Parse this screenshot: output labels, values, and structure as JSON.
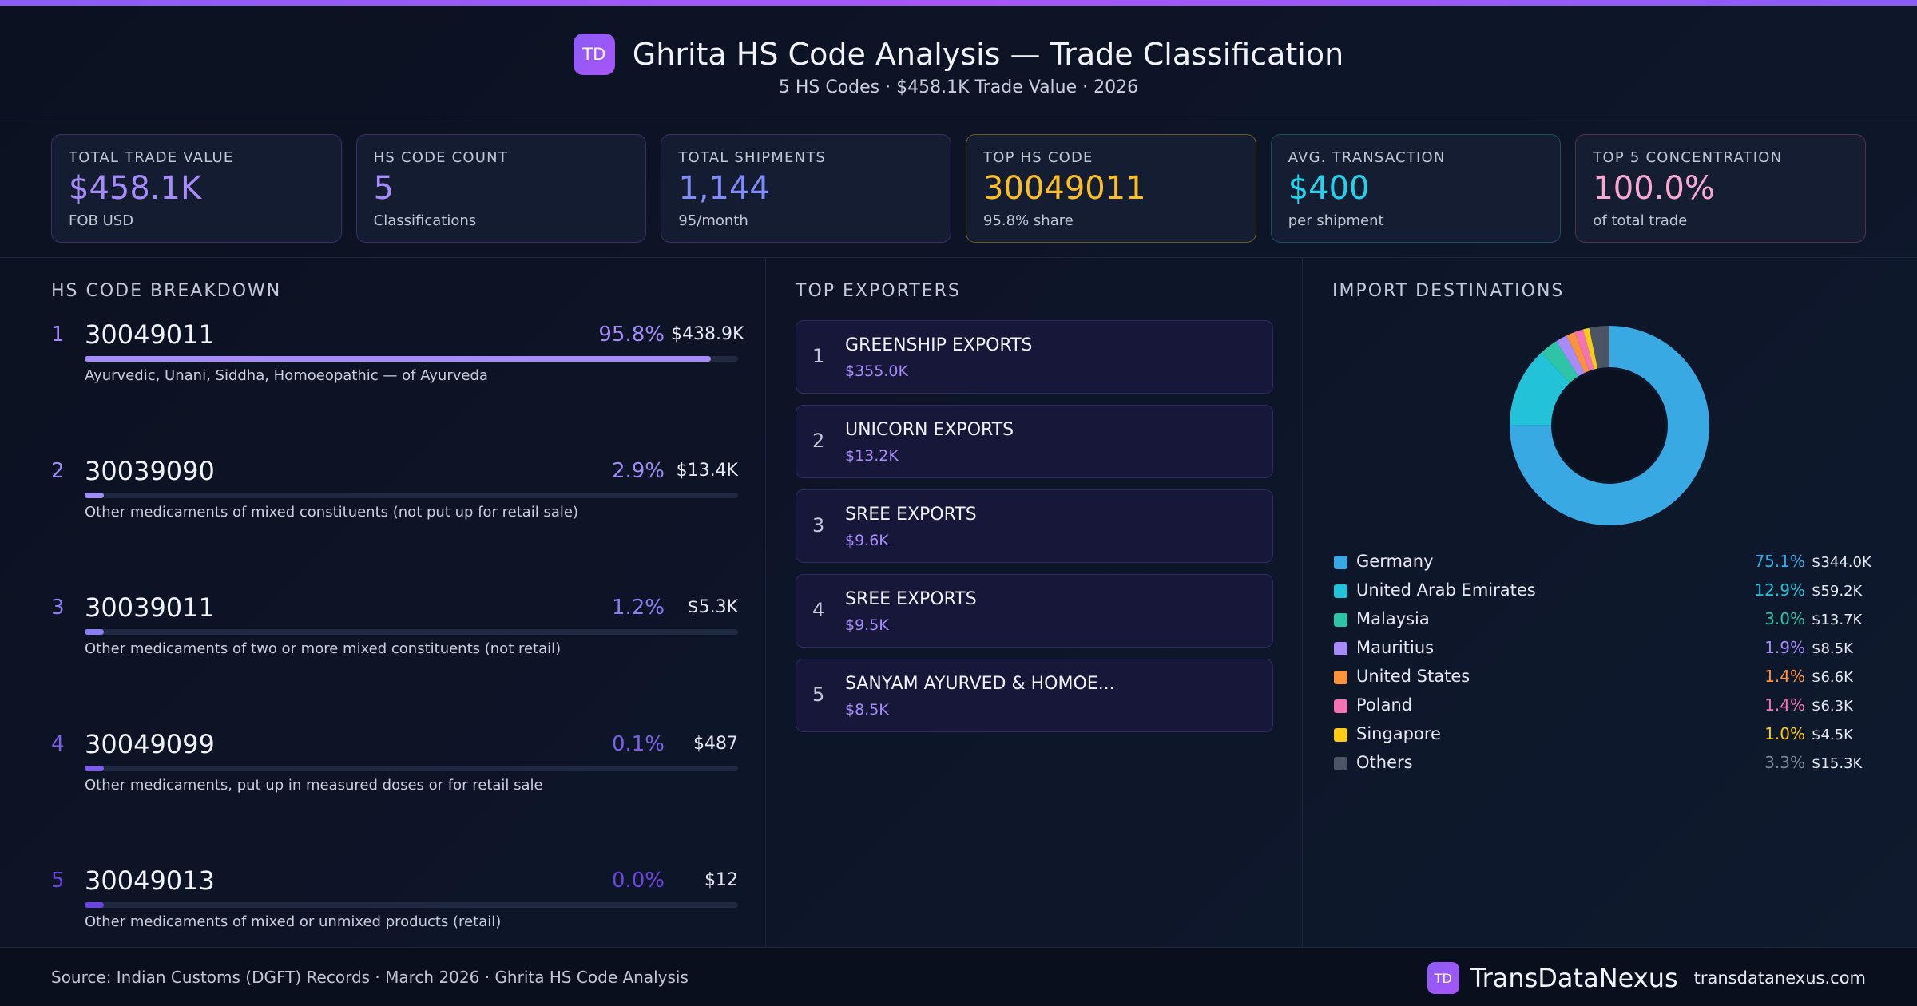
{
  "header": {
    "logo_text": "TD",
    "title": "Ghrita HS Code Analysis — Trade Classification",
    "subtitle": "5 HS Codes · $458.1K Trade Value · 2026"
  },
  "kpis": [
    {
      "label": "TOTAL TRADE VALUE",
      "value": "$458.1K",
      "sub": "FOB USD",
      "color": "#a78bfa"
    },
    {
      "label": "HS CODE COUNT",
      "value": "5",
      "sub": "Classifications",
      "color": "#a78bfa"
    },
    {
      "label": "TOTAL SHIPMENTS",
      "value": "1,144",
      "sub": "95/month",
      "color": "#818cf8"
    },
    {
      "label": "TOP HS CODE",
      "value": "30049011",
      "sub": "95.8% share",
      "color": "#fbbf24"
    },
    {
      "label": "AVG. TRANSACTION",
      "value": "$400",
      "sub": "per shipment",
      "color": "#22d3ee"
    },
    {
      "label": "TOP 5 CONCENTRATION",
      "value": "100.0%",
      "sub": "of total trade",
      "color": "#f9a8d4"
    }
  ],
  "hs_breakdown": {
    "title": "HS CODE BREAKDOWN",
    "items": [
      {
        "rank": "1",
        "code": "30049011",
        "pct": "95.8%",
        "share": 95.8,
        "value": "$438.9K",
        "desc": "Ayurvedic, Unani, Siddha, Homoeopathic — of Ayurveda",
        "color": "#a78bfa"
      },
      {
        "rank": "2",
        "code": "30039090",
        "pct": "2.9%",
        "share": 2.9,
        "value": "$13.4K",
        "desc": "Other medicaments of mixed constituents (not put up for retail sale)",
        "color": "#9f8cf5"
      },
      {
        "rank": "3",
        "code": "30039011",
        "pct": "1.2%",
        "share": 1.2,
        "value": "$5.3K",
        "desc": "Other medicaments of two or more mixed constituents (not retail)",
        "color": "#8b7ef3"
      },
      {
        "rank": "4",
        "code": "30049099",
        "pct": "0.1%",
        "share": 0.1,
        "value": "$487",
        "desc": "Other medicaments, put up in measured doses or for retail sale",
        "color": "#7c5ee8"
      },
      {
        "rank": "5",
        "code": "30049013",
        "pct": "0.0%",
        "share": 0.0,
        "value": "$12",
        "desc": "Other medicaments of mixed or unmixed products (retail)",
        "color": "#6d44e0"
      }
    ]
  },
  "exporters": {
    "title": "TOP EXPORTERS",
    "items": [
      {
        "rank": "1",
        "name": "GREENSHIP EXPORTS",
        "value": "$355.0K"
      },
      {
        "rank": "2",
        "name": "UNICORN EXPORTS",
        "value": "$13.2K"
      },
      {
        "rank": "3",
        "name": "SREE EXPORTS",
        "value": "$9.6K"
      },
      {
        "rank": "4",
        "name": "SREE EXPORTS",
        "value": "$9.5K"
      },
      {
        "rank": "5",
        "name": "SANYAM AYURVED & HOMOE...",
        "value": "$8.5K"
      }
    ]
  },
  "destinations": {
    "title": "IMPORT DESTINATIONS",
    "items": [
      {
        "name": "Germany",
        "pct": "75.1%",
        "share": 75.1,
        "value": "$344.0K",
        "color": "#38a9e3"
      },
      {
        "name": "United Arab Emirates",
        "pct": "12.9%",
        "share": 12.9,
        "value": "$59.2K",
        "color": "#22c3d9"
      },
      {
        "name": "Malaysia",
        "pct": "3.0%",
        "share": 3.0,
        "value": "$13.7K",
        "color": "#2dc4a8"
      },
      {
        "name": "Mauritius",
        "pct": "1.9%",
        "share": 1.9,
        "value": "$8.5K",
        "color": "#a78bfa"
      },
      {
        "name": "United States",
        "pct": "1.4%",
        "share": 1.4,
        "value": "$6.6K",
        "color": "#fb923c"
      },
      {
        "name": "Poland",
        "pct": "1.4%",
        "share": 1.4,
        "value": "$6.3K",
        "color": "#f472b6"
      },
      {
        "name": "Singapore",
        "pct": "1.0%",
        "share": 1.0,
        "value": "$4.5K",
        "color": "#facc15"
      },
      {
        "name": "Others",
        "pct": "3.3%",
        "share": 3.3,
        "value": "$15.3K",
        "color": "#4b5565"
      }
    ]
  },
  "footer": {
    "source": "Source: Indian Customs (DGFT) Records · March 2026 · Ghrita HS Code Analysis",
    "brand_badge": "TD",
    "brand_name": "TransDataNexus",
    "brand_url": "transdatanexus.com"
  }
}
